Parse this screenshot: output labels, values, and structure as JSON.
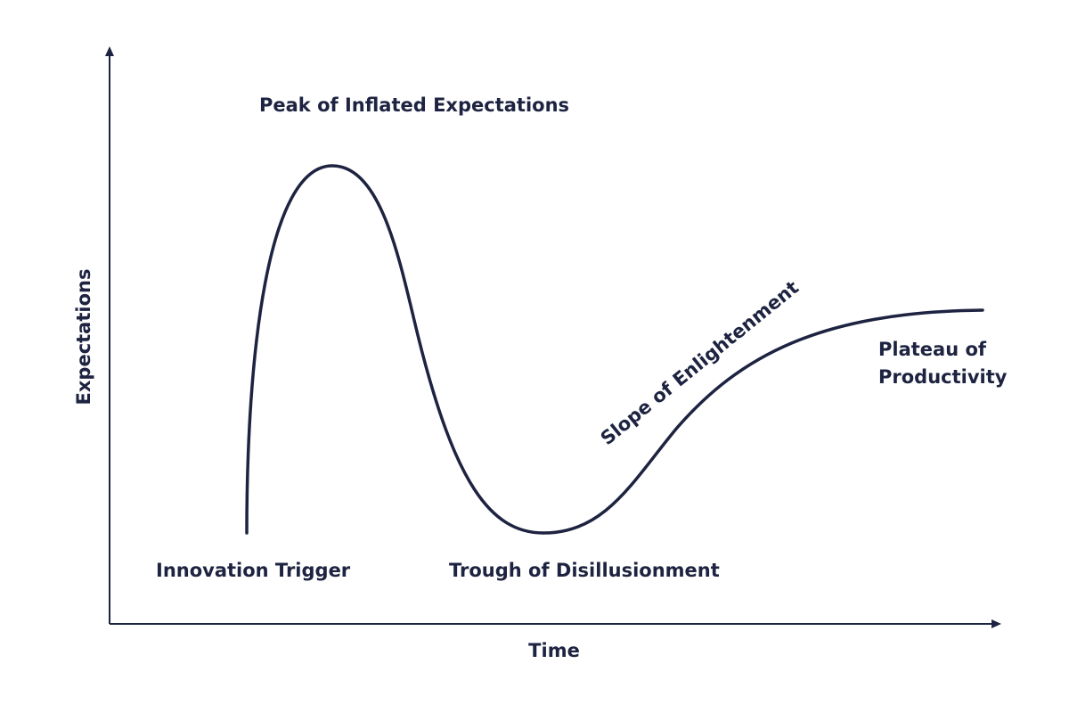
{
  "axes": {
    "x_label": "Time",
    "y_label": "Expectations"
  },
  "phases": [
    {
      "lines": [
        "Innovation Trigger"
      ]
    },
    {
      "lines": [
        "Peak of Inflated Expectations"
      ]
    },
    {
      "lines": [
        "Trough of Disillusionment"
      ]
    },
    {
      "lines": [
        "Slope of Enlightenment"
      ]
    },
    {
      "lines": [
        "Plateau of",
        "Productivity"
      ]
    }
  ]
}
